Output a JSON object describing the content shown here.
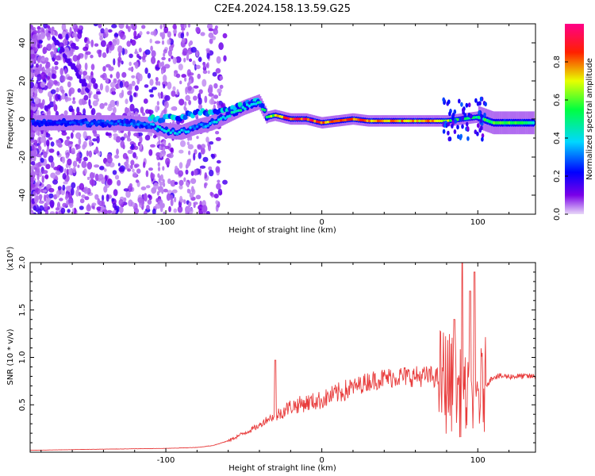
{
  "title": "C2E4.2024.158.13.59.G25",
  "chart_data": [
    {
      "type": "heatmap",
      "xlabel": "Height of straight line (km)",
      "ylabel": "Frequency (Hz)",
      "xlim": [
        -187,
        137
      ],
      "ylim": [
        -50,
        50
      ],
      "x_ticks": [
        -100,
        0,
        100
      ],
      "y_ticks": [
        -40,
        -20,
        0,
        20,
        40
      ],
      "colorbar": {
        "label": "Normalized spectral amplitude",
        "range": [
          0.0,
          1.0
        ],
        "ticks": [
          "0.0",
          "0.2",
          "0.4",
          "0.6",
          "0.8"
        ],
        "colormap": "rainbow (purple→blue→cyan→green→yellow→red→pink)"
      },
      "ridge": {
        "description": "dominant frequency track vs height",
        "x": [
          -170,
          -150,
          -130,
          -110,
          -100,
          -90,
          -80,
          -70,
          -60,
          -50,
          -40,
          -35,
          -30,
          -20,
          -10,
          0,
          10,
          20,
          30,
          40,
          50,
          60,
          70,
          80,
          90,
          100,
          110,
          120,
          135
        ],
        "y": [
          -2,
          -2,
          -2,
          -3,
          -6,
          -7,
          -4,
          -2,
          2,
          6,
          9,
          1,
          2,
          0,
          0,
          -2,
          -1,
          0,
          -1,
          -1,
          -1,
          -1,
          -1,
          -1,
          0,
          1,
          -2,
          -2,
          -2
        ],
        "upper_branch_x": [
          -110,
          -100,
          -90,
          -80,
          -70,
          -60,
          -50,
          -40
        ],
        "upper_branch_y": [
          0,
          0,
          1,
          3,
          4,
          5,
          7,
          10
        ],
        "amplitude": [
          0.25,
          0.3,
          0.3,
          0.35,
          0.45,
          0.4,
          0.35,
          0.4,
          0.45,
          0.5,
          0.45,
          0.6,
          0.7,
          0.95,
          0.95,
          0.85,
          0.85,
          0.9,
          0.85,
          0.8,
          0.8,
          0.8,
          0.85,
          0.7,
          0.55,
          0.55,
          0.6,
          0.6,
          0.5
        ]
      }
    },
    {
      "type": "line",
      "xlabel": "Height of straight line (km)",
      "ylabel": "SNR (10 * v/v)",
      "y_multiplier": "(x10⁴)",
      "xlim": [
        -187,
        137
      ],
      "ylim": [
        0,
        2.0
      ],
      "x_ticks": [
        -100,
        0,
        100
      ],
      "y_ticks": [
        "0.5",
        "1.0",
        "1.5",
        "2.0"
      ],
      "line_color": "#e83c3c",
      "envelope": {
        "description": "approximate SNR trend (x10^4) along height; trace oscillates around this",
        "x": [
          -187,
          -150,
          -100,
          -80,
          -70,
          -60,
          -50,
          -40,
          -35,
          -30,
          -20,
          -10,
          0,
          10,
          20,
          30,
          40,
          50,
          60,
          70,
          75,
          80,
          85,
          90,
          95,
          100,
          105,
          110,
          120,
          137
        ],
        "y": [
          0.02,
          0.03,
          0.04,
          0.05,
          0.07,
          0.12,
          0.2,
          0.28,
          0.35,
          0.38,
          0.48,
          0.52,
          0.55,
          0.62,
          0.68,
          0.75,
          0.78,
          0.8,
          0.8,
          0.8,
          0.78,
          0.75,
          0.7,
          0.6,
          0.55,
          0.6,
          0.7,
          0.8,
          0.8,
          0.8
        ]
      },
      "spikes": [
        {
          "x": -30,
          "y": 0.97
        },
        {
          "x": 90,
          "y": 2.0
        },
        {
          "x": 95,
          "y": 1.7
        },
        {
          "x": 98,
          "y": 1.9
        },
        {
          "x": 85,
          "y": 1.4
        }
      ]
    }
  ]
}
